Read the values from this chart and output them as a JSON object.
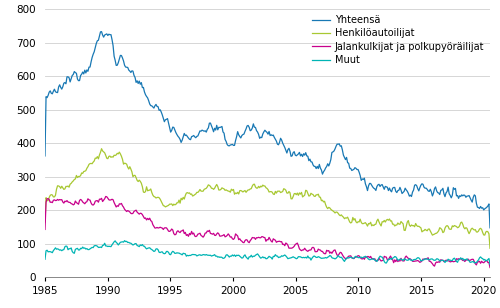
{
  "title": "",
  "xlabel": "",
  "ylabel": "",
  "xlim": [
    1985.0,
    2020.5
  ],
  "ylim": [
    0,
    800
  ],
  "yticks": [
    0,
    100,
    200,
    300,
    400,
    500,
    600,
    700,
    800
  ],
  "xticks": [
    1985,
    1990,
    1995,
    2000,
    2005,
    2010,
    2015,
    2020
  ],
  "legend_labels": [
    "Yhteensä",
    "Henkilöautoilijat",
    "Jalankulkijat ja polkupyöräilijat",
    "Muut"
  ],
  "colors": [
    "#1878b4",
    "#a8c832",
    "#c8008c",
    "#00b4b4"
  ],
  "background_color": "#ffffff",
  "grid_color": "#d0d0d0",
  "yhteensa_knots": [
    [
      1985.0,
      542
    ],
    [
      1985.5,
      540
    ],
    [
      1986.0,
      555
    ],
    [
      1986.5,
      575
    ],
    [
      1987.0,
      590
    ],
    [
      1987.5,
      610
    ],
    [
      1988.0,
      615
    ],
    [
      1988.5,
      640
    ],
    [
      1989.0,
      680
    ],
    [
      1989.3,
      710
    ],
    [
      1989.6,
      730
    ],
    [
      1990.0,
      720
    ],
    [
      1990.3,
      715
    ],
    [
      1990.6,
      660
    ],
    [
      1991.0,
      650
    ],
    [
      1991.5,
      635
    ],
    [
      1992.0,
      600
    ],
    [
      1992.5,
      570
    ],
    [
      1993.0,
      545
    ],
    [
      1993.5,
      520
    ],
    [
      1994.0,
      500
    ],
    [
      1994.5,
      480
    ],
    [
      1995.0,
      460
    ],
    [
      1995.5,
      430
    ],
    [
      1996.0,
      415
    ],
    [
      1997.0,
      420
    ],
    [
      1997.5,
      435
    ],
    [
      1998.0,
      450
    ],
    [
      1998.5,
      445
    ],
    [
      1999.0,
      430
    ],
    [
      1999.5,
      410
    ],
    [
      2000.0,
      400
    ],
    [
      2000.5,
      420
    ],
    [
      2001.0,
      440
    ],
    [
      2001.5,
      445
    ],
    [
      2002.0,
      440
    ],
    [
      2002.5,
      430
    ],
    [
      2003.0,
      420
    ],
    [
      2003.5,
      410
    ],
    [
      2004.0,
      395
    ],
    [
      2004.5,
      385
    ],
    [
      2005.0,
      370
    ],
    [
      2005.5,
      365
    ],
    [
      2006.0,
      360
    ],
    [
      2006.5,
      340
    ],
    [
      2007.0,
      320
    ],
    [
      2007.5,
      330
    ],
    [
      2008.0,
      385
    ],
    [
      2008.5,
      400
    ],
    [
      2009.0,
      360
    ],
    [
      2009.5,
      320
    ],
    [
      2010.0,
      310
    ],
    [
      2010.5,
      285
    ],
    [
      2011.0,
      270
    ],
    [
      2011.5,
      260
    ],
    [
      2012.0,
      265
    ],
    [
      2012.5,
      270
    ],
    [
      2013.0,
      260
    ],
    [
      2013.5,
      255
    ],
    [
      2014.0,
      250
    ],
    [
      2014.5,
      260
    ],
    [
      2015.0,
      270
    ],
    [
      2015.5,
      265
    ],
    [
      2016.0,
      260
    ],
    [
      2016.5,
      255
    ],
    [
      2017.0,
      250
    ],
    [
      2017.5,
      245
    ],
    [
      2018.0,
      240
    ],
    [
      2018.5,
      235
    ],
    [
      2019.0,
      230
    ],
    [
      2019.5,
      225
    ],
    [
      2020.0,
      215
    ],
    [
      2020.5,
      210
    ]
  ],
  "henkiloauto_knots": [
    [
      1985.0,
      232
    ],
    [
      1985.5,
      245
    ],
    [
      1986.0,
      255
    ],
    [
      1986.5,
      270
    ],
    [
      1987.0,
      280
    ],
    [
      1987.5,
      300
    ],
    [
      1988.0,
      315
    ],
    [
      1988.5,
      330
    ],
    [
      1989.0,
      355
    ],
    [
      1989.5,
      370
    ],
    [
      1990.0,
      365
    ],
    [
      1990.5,
      360
    ],
    [
      1991.0,
      355
    ],
    [
      1991.5,
      340
    ],
    [
      1992.0,
      310
    ],
    [
      1992.5,
      285
    ],
    [
      1993.0,
      265
    ],
    [
      1993.5,
      250
    ],
    [
      1994.0,
      235
    ],
    [
      1994.5,
      220
    ],
    [
      1995.0,
      215
    ],
    [
      1995.5,
      220
    ],
    [
      1996.0,
      230
    ],
    [
      1996.5,
      240
    ],
    [
      1997.0,
      255
    ],
    [
      1997.5,
      260
    ],
    [
      1998.0,
      270
    ],
    [
      1998.5,
      268
    ],
    [
      1999.0,
      265
    ],
    [
      1999.5,
      260
    ],
    [
      2000.0,
      255
    ],
    [
      2000.5,
      258
    ],
    [
      2001.0,
      260
    ],
    [
      2001.5,
      265
    ],
    [
      2002.0,
      268
    ],
    [
      2002.5,
      265
    ],
    [
      2003.0,
      260
    ],
    [
      2003.5,
      258
    ],
    [
      2004.0,
      255
    ],
    [
      2004.5,
      250
    ],
    [
      2005.0,
      245
    ],
    [
      2005.5,
      248
    ],
    [
      2006.0,
      250
    ],
    [
      2006.5,
      248
    ],
    [
      2007.0,
      235
    ],
    [
      2007.5,
      215
    ],
    [
      2008.0,
      195
    ],
    [
      2008.5,
      185
    ],
    [
      2009.0,
      175
    ],
    [
      2009.5,
      170
    ],
    [
      2010.0,
      165
    ],
    [
      2010.5,
      160
    ],
    [
      2011.0,
      160
    ],
    [
      2011.5,
      162
    ],
    [
      2012.0,
      165
    ],
    [
      2012.5,
      165
    ],
    [
      2013.0,
      160
    ],
    [
      2013.5,
      155
    ],
    [
      2014.0,
      150
    ],
    [
      2014.5,
      148
    ],
    [
      2015.0,
      145
    ],
    [
      2015.5,
      140
    ],
    [
      2016.0,
      135
    ],
    [
      2016.5,
      138
    ],
    [
      2017.0,
      145
    ],
    [
      2017.5,
      148
    ],
    [
      2018.0,
      150
    ],
    [
      2018.5,
      148
    ],
    [
      2019.0,
      140
    ],
    [
      2019.5,
      135
    ],
    [
      2020.0,
      130
    ],
    [
      2020.5,
      128
    ]
  ],
  "jalan_knots": [
    [
      1985.0,
      235
    ],
    [
      1985.5,
      232
    ],
    [
      1986.0,
      230
    ],
    [
      1986.5,
      228
    ],
    [
      1987.0,
      225
    ],
    [
      1987.5,
      222
    ],
    [
      1988.0,
      220
    ],
    [
      1988.5,
      225
    ],
    [
      1989.0,
      228
    ],
    [
      1989.5,
      232
    ],
    [
      1990.0,
      230
    ],
    [
      1990.5,
      220
    ],
    [
      1991.0,
      210
    ],
    [
      1991.5,
      205
    ],
    [
      1992.0,
      200
    ],
    [
      1992.5,
      190
    ],
    [
      1993.0,
      175
    ],
    [
      1993.5,
      162
    ],
    [
      1994.0,
      155
    ],
    [
      1994.5,
      148
    ],
    [
      1995.0,
      142
    ],
    [
      1995.5,
      138
    ],
    [
      1996.0,
      132
    ],
    [
      1996.5,
      128
    ],
    [
      1997.0,
      125
    ],
    [
      1997.5,
      128
    ],
    [
      1998.0,
      130
    ],
    [
      1998.5,
      128
    ],
    [
      1999.0,
      125
    ],
    [
      1999.5,
      122
    ],
    [
      2000.0,
      120
    ],
    [
      2000.5,
      118
    ],
    [
      2001.0,
      115
    ],
    [
      2001.5,
      118
    ],
    [
      2002.0,
      120
    ],
    [
      2002.5,
      118
    ],
    [
      2003.0,
      112
    ],
    [
      2003.5,
      108
    ],
    [
      2004.0,
      100
    ],
    [
      2004.5,
      95
    ],
    [
      2005.0,
      90
    ],
    [
      2005.5,
      85
    ],
    [
      2006.0,
      80
    ],
    [
      2006.5,
      78
    ],
    [
      2007.0,
      75
    ],
    [
      2007.5,
      72
    ],
    [
      2008.0,
      70
    ],
    [
      2008.5,
      68
    ],
    [
      2009.0,
      65
    ],
    [
      2009.5,
      65
    ],
    [
      2010.0,
      65
    ],
    [
      2010.5,
      62
    ],
    [
      2011.0,
      60
    ],
    [
      2011.5,
      58
    ],
    [
      2012.0,
      58
    ],
    [
      2012.5,
      56
    ],
    [
      2013.0,
      55
    ],
    [
      2013.5,
      54
    ],
    [
      2014.0,
      52
    ],
    [
      2014.5,
      52
    ],
    [
      2015.0,
      52
    ],
    [
      2015.5,
      51
    ],
    [
      2016.0,
      50
    ],
    [
      2016.5,
      50
    ],
    [
      2017.0,
      50
    ],
    [
      2017.5,
      49
    ],
    [
      2018.0,
      48
    ],
    [
      2018.5,
      47
    ],
    [
      2019.0,
      46
    ],
    [
      2019.5,
      45
    ],
    [
      2020.0,
      44
    ],
    [
      2020.5,
      44
    ]
  ],
  "muut_knots": [
    [
      1985.0,
      75
    ],
    [
      1985.5,
      76
    ],
    [
      1986.0,
      78
    ],
    [
      1986.5,
      80
    ],
    [
      1987.0,
      82
    ],
    [
      1987.5,
      84
    ],
    [
      1988.0,
      86
    ],
    [
      1988.5,
      88
    ],
    [
      1989.0,
      90
    ],
    [
      1989.5,
      92
    ],
    [
      1990.0,
      95
    ],
    [
      1990.5,
      100
    ],
    [
      1991.0,
      105
    ],
    [
      1991.5,
      105
    ],
    [
      1992.0,
      100
    ],
    [
      1992.5,
      95
    ],
    [
      1993.0,
      90
    ],
    [
      1993.5,
      85
    ],
    [
      1994.0,
      80
    ],
    [
      1994.5,
      75
    ],
    [
      1995.0,
      72
    ],
    [
      1995.5,
      70
    ],
    [
      1996.0,
      68
    ],
    [
      1996.5,
      67
    ],
    [
      1997.0,
      66
    ],
    [
      1997.5,
      65
    ],
    [
      1998.0,
      65
    ],
    [
      1998.5,
      64
    ],
    [
      1999.0,
      63
    ],
    [
      1999.5,
      62
    ],
    [
      2000.0,
      62
    ],
    [
      2000.5,
      62
    ],
    [
      2001.0,
      62
    ],
    [
      2001.5,
      62
    ],
    [
      2002.0,
      62
    ],
    [
      2002.5,
      61
    ],
    [
      2003.0,
      61
    ],
    [
      2003.5,
      60
    ],
    [
      2004.0,
      60
    ],
    [
      2004.5,
      60
    ],
    [
      2005.0,
      60
    ],
    [
      2005.5,
      59
    ],
    [
      2006.0,
      58
    ],
    [
      2006.5,
      58
    ],
    [
      2007.0,
      57
    ],
    [
      2007.5,
      57
    ],
    [
      2008.0,
      57
    ],
    [
      2008.5,
      57
    ],
    [
      2009.0,
      57
    ],
    [
      2009.5,
      57
    ],
    [
      2010.0,
      57
    ],
    [
      2010.5,
      56
    ],
    [
      2011.0,
      55
    ],
    [
      2011.5,
      54
    ],
    [
      2012.0,
      54
    ],
    [
      2012.5,
      53
    ],
    [
      2013.0,
      53
    ],
    [
      2013.5,
      52
    ],
    [
      2014.0,
      52
    ],
    [
      2014.5,
      52
    ],
    [
      2015.0,
      52
    ],
    [
      2015.5,
      52
    ],
    [
      2016.0,
      51
    ],
    [
      2016.5,
      51
    ],
    [
      2017.0,
      51
    ],
    [
      2017.5,
      51
    ],
    [
      2018.0,
      51
    ],
    [
      2018.5,
      51
    ],
    [
      2019.0,
      50
    ],
    [
      2019.5,
      50
    ],
    [
      2020.0,
      50
    ],
    [
      2020.5,
      50
    ]
  ]
}
